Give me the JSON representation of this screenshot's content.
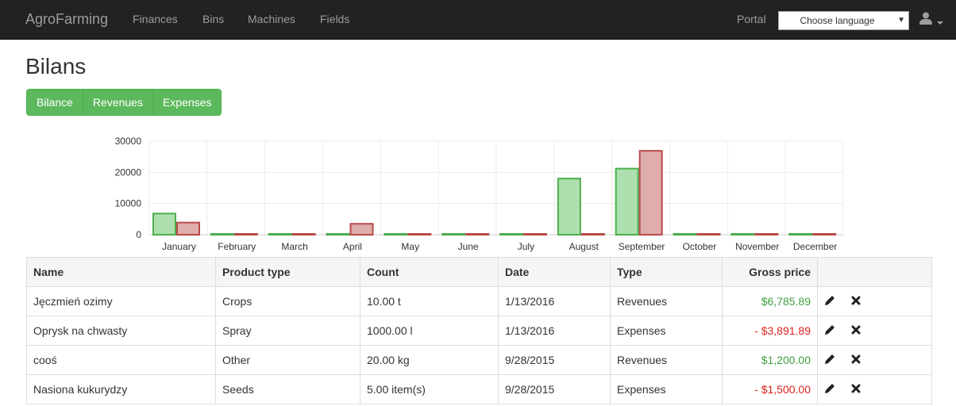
{
  "navbar": {
    "brand": "AgroFarming",
    "links": [
      "Finances",
      "Bins",
      "Machines",
      "Fields"
    ],
    "portal": "Portal",
    "language_select": {
      "value": "Choose language"
    },
    "user_icon": "user-icon"
  },
  "page": {
    "title": "Bilans",
    "tabs": [
      "Bilance",
      "Revenues",
      "Expenses"
    ]
  },
  "colors": {
    "navbar_bg": "#222222",
    "button_green": "#5cb85c",
    "revenue_bar": "#4cae4c",
    "expense_bar": "#b94a48",
    "positive_text": "#3fa03f",
    "negative_text": "#d9231d"
  },
  "chart_data": {
    "type": "bar",
    "categories": [
      "January",
      "February",
      "March",
      "April",
      "May",
      "June",
      "July",
      "August",
      "September",
      "October",
      "November",
      "December"
    ],
    "series": [
      {
        "values": [
          6785.89,
          0,
          0,
          0,
          0,
          0,
          0,
          18000,
          21200,
          0,
          0,
          0
        ],
        "color": "#4cae4c"
      },
      {
        "values": [
          3891.89,
          0,
          0,
          3500,
          0,
          0,
          0,
          0,
          26900,
          0,
          0,
          0
        ],
        "color": "#b94a48"
      }
    ],
    "yticks": [
      "30000",
      "20000",
      "10000",
      "0"
    ],
    "ylim": [
      0,
      30000
    ],
    "grid": true
  },
  "table": {
    "headers": [
      "Name",
      "Product type",
      "Count",
      "Date",
      "Type",
      "Gross price"
    ],
    "rows": [
      {
        "name": "Jęczmień ozimy",
        "product_type": "Crops",
        "count": "10.00 t",
        "date": "1/13/2016",
        "type": "Revenues",
        "gross_price": "$6,785.89",
        "sign": "pos"
      },
      {
        "name": "Oprysk na chwasty",
        "product_type": "Spray",
        "count": "1000.00 l",
        "date": "1/13/2016",
        "type": "Expenses",
        "gross_price": "- $3,891.89",
        "sign": "neg"
      },
      {
        "name": "cooś",
        "product_type": "Other",
        "count": "20.00 kg",
        "date": "9/28/2015",
        "type": "Revenues",
        "gross_price": "$1,200.00",
        "sign": "pos"
      },
      {
        "name": "Nasiona kukurydzy",
        "product_type": "Seeds",
        "count": "5.00 item(s)",
        "date": "9/28/2015",
        "type": "Expenses",
        "gross_price": "- $1,500.00",
        "sign": "neg"
      }
    ],
    "row_actions": [
      "pencil-icon",
      "close-icon"
    ]
  }
}
